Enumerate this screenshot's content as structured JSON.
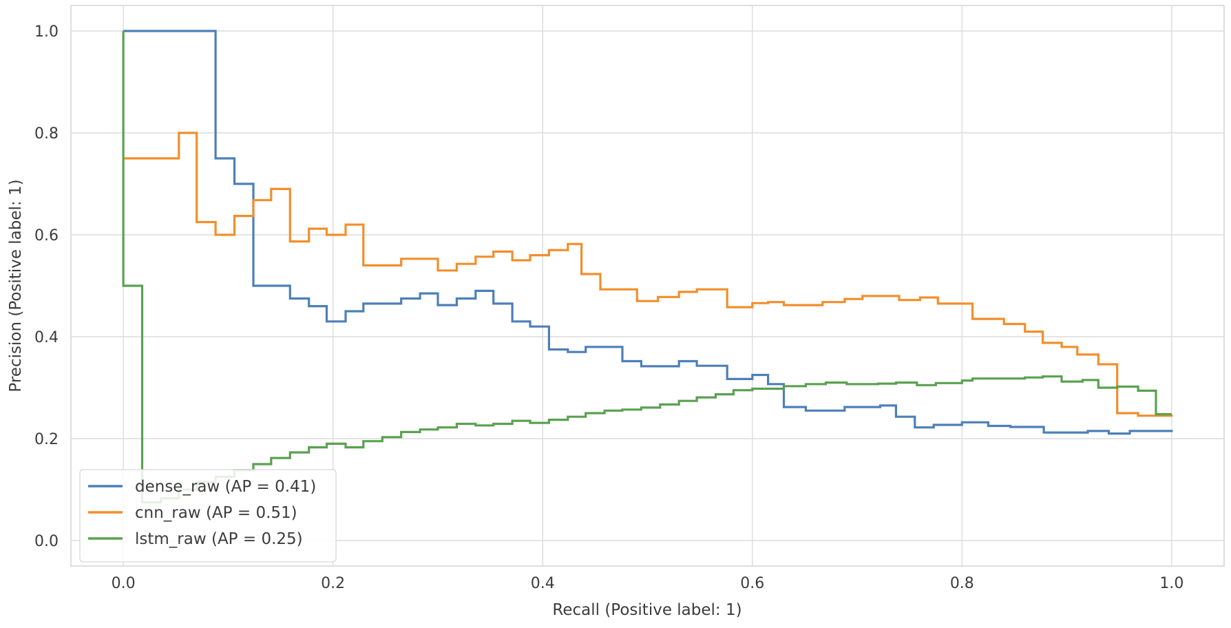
{
  "chart_data": {
    "type": "line",
    "title": "",
    "xlabel": "Recall (Positive label: 1)",
    "ylabel": "Precision (Positive label: 1)",
    "xlim": [
      -0.05,
      1.05
    ],
    "ylim": [
      -0.05,
      1.05
    ],
    "x_ticks": [
      0.0,
      0.2,
      0.4,
      0.6,
      0.8,
      1.0
    ],
    "x_tick_labels": [
      "0.0",
      "0.2",
      "0.4",
      "0.6",
      "0.8",
      "1.0"
    ],
    "y_ticks": [
      0.0,
      0.2,
      0.4,
      0.6,
      0.8,
      1.0
    ],
    "y_tick_labels": [
      "0.0",
      "0.2",
      "0.4",
      "0.6",
      "0.8",
      "1.0"
    ],
    "grid": true,
    "legend_position": "lower-left",
    "drawstyle": "steps-post",
    "series": [
      {
        "name": "dense_raw (AP = 0.41)",
        "color": "#4c7fb8",
        "points": [
          [
            0.0,
            1.0
          ],
          [
            0.088,
            0.75
          ],
          [
            0.106,
            0.7
          ],
          [
            0.124,
            0.5
          ],
          [
            0.159,
            0.475
          ],
          [
            0.177,
            0.46
          ],
          [
            0.194,
            0.43
          ],
          [
            0.212,
            0.45
          ],
          [
            0.229,
            0.465
          ],
          [
            0.265,
            0.475
          ],
          [
            0.283,
            0.485
          ],
          [
            0.3,
            0.462
          ],
          [
            0.318,
            0.475
          ],
          [
            0.336,
            0.49
          ],
          [
            0.353,
            0.465
          ],
          [
            0.371,
            0.43
          ],
          [
            0.388,
            0.42
          ],
          [
            0.406,
            0.375
          ],
          [
            0.424,
            0.37
          ],
          [
            0.441,
            0.38
          ],
          [
            0.476,
            0.352
          ],
          [
            0.494,
            0.342
          ],
          [
            0.53,
            0.352
          ],
          [
            0.547,
            0.343
          ],
          [
            0.576,
            0.342
          ],
          [
            0.576,
            0.317
          ],
          [
            0.6,
            0.325
          ],
          [
            0.615,
            0.307
          ],
          [
            0.63,
            0.262
          ],
          [
            0.651,
            0.255
          ],
          [
            0.688,
            0.262
          ],
          [
            0.722,
            0.265
          ],
          [
            0.737,
            0.243
          ],
          [
            0.755,
            0.222
          ],
          [
            0.773,
            0.227
          ],
          [
            0.8,
            0.232
          ],
          [
            0.825,
            0.225
          ],
          [
            0.846,
            0.223
          ],
          [
            0.878,
            0.212
          ],
          [
            0.92,
            0.215
          ],
          [
            0.94,
            0.21
          ],
          [
            0.96,
            0.215
          ],
          [
            0.98,
            0.215
          ],
          [
            1.0,
            0.217
          ]
        ]
      },
      {
        "name": "cnn_raw (AP = 0.51)",
        "color": "#f28e2b",
        "points": [
          [
            0.0,
            0.75
          ],
          [
            0.053,
            0.8
          ],
          [
            0.07,
            0.625
          ],
          [
            0.088,
            0.6
          ],
          [
            0.106,
            0.637
          ],
          [
            0.124,
            0.668
          ],
          [
            0.141,
            0.69
          ],
          [
            0.159,
            0.587
          ],
          [
            0.177,
            0.612
          ],
          [
            0.194,
            0.6
          ],
          [
            0.212,
            0.62
          ],
          [
            0.229,
            0.54
          ],
          [
            0.265,
            0.553
          ],
          [
            0.3,
            0.53
          ],
          [
            0.318,
            0.543
          ],
          [
            0.336,
            0.557
          ],
          [
            0.353,
            0.567
          ],
          [
            0.371,
            0.55
          ],
          [
            0.388,
            0.56
          ],
          [
            0.406,
            0.57
          ],
          [
            0.424,
            0.582
          ],
          [
            0.437,
            0.523
          ],
          [
            0.455,
            0.493
          ],
          [
            0.49,
            0.47
          ],
          [
            0.51,
            0.478
          ],
          [
            0.53,
            0.488
          ],
          [
            0.547,
            0.493
          ],
          [
            0.576,
            0.458
          ],
          [
            0.6,
            0.466
          ],
          [
            0.615,
            0.468
          ],
          [
            0.63,
            0.462
          ],
          [
            0.667,
            0.468
          ],
          [
            0.688,
            0.474
          ],
          [
            0.705,
            0.48
          ],
          [
            0.74,
            0.472
          ],
          [
            0.76,
            0.477
          ],
          [
            0.777,
            0.465
          ],
          [
            0.8,
            0.465
          ],
          [
            0.81,
            0.435
          ],
          [
            0.84,
            0.425
          ],
          [
            0.86,
            0.41
          ],
          [
            0.877,
            0.388
          ],
          [
            0.895,
            0.38
          ],
          [
            0.91,
            0.365
          ],
          [
            0.93,
            0.346
          ],
          [
            0.948,
            0.25
          ],
          [
            0.968,
            0.245
          ],
          [
            0.985,
            0.245
          ],
          [
            1.0,
            0.247
          ]
        ]
      },
      {
        "name": "lstm_raw (AP = 0.25)",
        "color": "#59a14f",
        "points": [
          [
            0.0,
            1.0
          ],
          [
            0.0,
            0.5
          ],
          [
            0.018,
            0.075
          ],
          [
            0.036,
            0.083
          ],
          [
            0.053,
            0.1
          ],
          [
            0.07,
            0.115
          ],
          [
            0.088,
            0.125
          ],
          [
            0.106,
            0.138
          ],
          [
            0.124,
            0.15
          ],
          [
            0.141,
            0.162
          ],
          [
            0.159,
            0.173
          ],
          [
            0.177,
            0.183
          ],
          [
            0.194,
            0.19
          ],
          [
            0.212,
            0.183
          ],
          [
            0.229,
            0.195
          ],
          [
            0.247,
            0.203
          ],
          [
            0.265,
            0.213
          ],
          [
            0.283,
            0.218
          ],
          [
            0.3,
            0.222
          ],
          [
            0.318,
            0.229
          ],
          [
            0.336,
            0.226
          ],
          [
            0.353,
            0.229
          ],
          [
            0.371,
            0.235
          ],
          [
            0.388,
            0.231
          ],
          [
            0.406,
            0.237
          ],
          [
            0.424,
            0.243
          ],
          [
            0.441,
            0.25
          ],
          [
            0.459,
            0.255
          ],
          [
            0.476,
            0.257
          ],
          [
            0.494,
            0.261
          ],
          [
            0.512,
            0.267
          ],
          [
            0.53,
            0.274
          ],
          [
            0.547,
            0.281
          ],
          [
            0.565,
            0.287
          ],
          [
            0.582,
            0.295
          ],
          [
            0.6,
            0.298
          ],
          [
            0.63,
            0.303
          ],
          [
            0.651,
            0.307
          ],
          [
            0.67,
            0.31
          ],
          [
            0.69,
            0.307
          ],
          [
            0.72,
            0.308
          ],
          [
            0.737,
            0.31
          ],
          [
            0.757,
            0.305
          ],
          [
            0.775,
            0.309
          ],
          [
            0.8,
            0.314
          ],
          [
            0.81,
            0.318
          ],
          [
            0.84,
            0.318
          ],
          [
            0.86,
            0.32
          ],
          [
            0.877,
            0.322
          ],
          [
            0.895,
            0.312
          ],
          [
            0.915,
            0.315
          ],
          [
            0.93,
            0.3
          ],
          [
            0.948,
            0.302
          ],
          [
            0.968,
            0.294
          ],
          [
            0.985,
            0.248
          ],
          [
            1.0,
            0.248
          ]
        ]
      }
    ]
  }
}
